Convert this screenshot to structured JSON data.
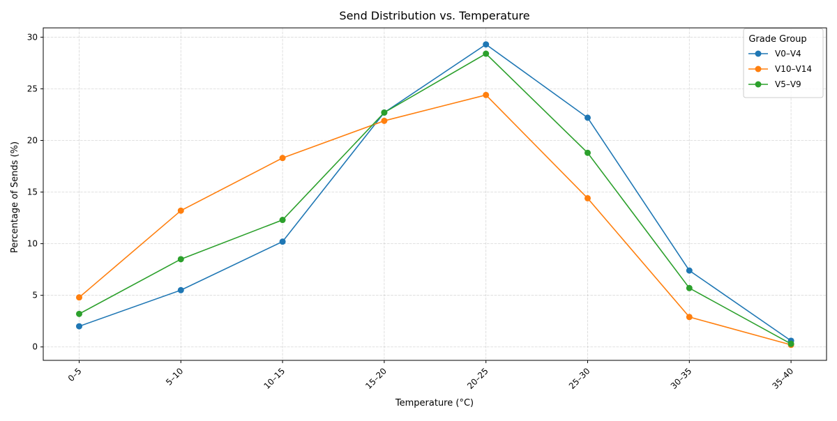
{
  "chart_data": {
    "type": "line",
    "title": "Send Distribution vs. Temperature",
    "xlabel": "Temperature (°C)",
    "ylabel": "Percentage of Sends (%)",
    "categories": [
      "0–5",
      "5–10",
      "10–15",
      "15–20",
      "20–25",
      "25–30",
      "30–35",
      "35–40"
    ],
    "ylim": [
      -1.3,
      30.9
    ],
    "yticks": [
      0,
      5,
      10,
      15,
      20,
      25,
      30
    ],
    "grid": true,
    "legend": {
      "title": "Grade Group",
      "placement": "top-right"
    },
    "series": [
      {
        "name": "V0–V4",
        "color": "#1f77b4",
        "values": [
          2.0,
          5.5,
          10.2,
          22.7,
          29.3,
          22.2,
          7.4,
          0.6
        ]
      },
      {
        "name": "V10–V14",
        "color": "#ff7f0e",
        "values": [
          4.8,
          13.2,
          18.3,
          21.9,
          24.4,
          14.4,
          2.9,
          0.2
        ]
      },
      {
        "name": "V5–V9",
        "color": "#2ca02c",
        "values": [
          3.2,
          8.5,
          12.3,
          22.7,
          28.4,
          18.8,
          5.7,
          0.3
        ]
      }
    ]
  }
}
